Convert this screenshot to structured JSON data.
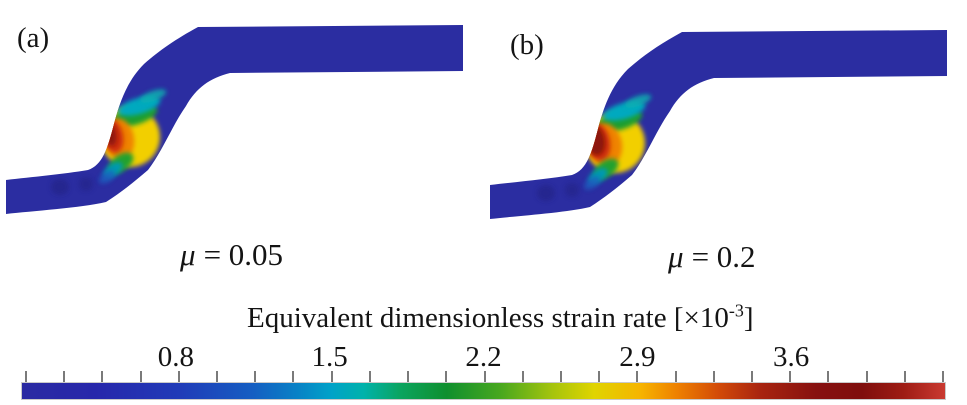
{
  "figure": {
    "background": "#ffffff",
    "panels": [
      {
        "label": "(a)",
        "caption": {
          "symbol": "μ",
          "text": "= 0.05"
        }
      },
      {
        "label": "(b)",
        "caption": {
          "symbol": "μ",
          "text": "= 0.2"
        }
      }
    ],
    "specimen": {
      "body_color": "#2b2da1"
    },
    "colorbar": {
      "title_pre": "Equivalent dimensionless strain rate [×10",
      "title_sup": "-3",
      "title_post": "]",
      "tick_color": "#7a7a7a",
      "border_color": "#c9c9c9"
    }
  },
  "chart_data": {
    "type": "heatmap",
    "title": "Equivalent dimensionless strain rate [×10⁻³]",
    "panels": [
      {
        "label": "(a)",
        "friction_coefficient": 0.05
      },
      {
        "label": "(b)",
        "friction_coefficient": 0.2
      }
    ],
    "colorbar": {
      "orientation": "horizontal",
      "min": 0.1,
      "max": 4.3,
      "labeled_ticks": [
        0.8,
        1.5,
        2.2,
        2.9,
        3.6
      ],
      "minor_tick_count": 25,
      "units": "×10⁻³",
      "colormap_stops": [
        {
          "pos": 0.0,
          "color": "#2a2aa2"
        },
        {
          "pos": 0.08,
          "color": "#2727ab"
        },
        {
          "pos": 0.17,
          "color": "#203bb8"
        },
        {
          "pos": 0.25,
          "color": "#155ec2"
        },
        {
          "pos": 0.3,
          "color": "#0883c6"
        },
        {
          "pos": 0.335,
          "color": "#00a2c8"
        },
        {
          "pos": 0.37,
          "color": "#00b2ab"
        },
        {
          "pos": 0.41,
          "color": "#0ba45f"
        },
        {
          "pos": 0.46,
          "color": "#0f8f2e"
        },
        {
          "pos": 0.52,
          "color": "#4aa81e"
        },
        {
          "pos": 0.575,
          "color": "#a6c40d"
        },
        {
          "pos": 0.62,
          "color": "#e0d400"
        },
        {
          "pos": 0.67,
          "color": "#f6b400"
        },
        {
          "pos": 0.71,
          "color": "#ee8000"
        },
        {
          "pos": 0.755,
          "color": "#d24a08"
        },
        {
          "pos": 0.8,
          "color": "#a82410"
        },
        {
          "pos": 0.86,
          "color": "#871110"
        },
        {
          "pos": 0.91,
          "color": "#7f0e0d"
        },
        {
          "pos": 0.955,
          "color": "#9e1c14"
        },
        {
          "pos": 1.0,
          "color": "#ca3a31"
        }
      ]
    }
  }
}
